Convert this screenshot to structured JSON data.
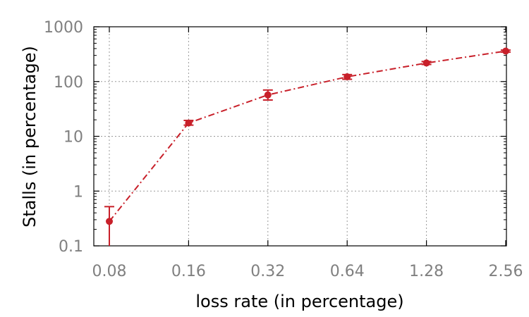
{
  "chart_data": {
    "type": "line",
    "xlabel": "loss rate (in percentage)",
    "ylabel": "Stalls (in percentage)",
    "x_scale": "log2",
    "y_scale": "log10",
    "x": [
      0.08,
      0.16,
      0.32,
      0.64,
      1.28,
      2.56
    ],
    "x_tick_labels": [
      "0.08",
      "0.16",
      "0.32",
      "0.64",
      "1.28",
      "2.56"
    ],
    "y_ticks": [
      0.1,
      1,
      10,
      100,
      1000
    ],
    "y_tick_labels": [
      "0.1",
      "1",
      "10",
      "100",
      "1000"
    ],
    "ylim": [
      0.1,
      1000
    ],
    "grid": true,
    "series": [
      {
        "color": "#c8202a",
        "line_style": "dash-dot",
        "marker": "circle",
        "values": [
          0.28,
          17.5,
          57,
          122,
          218,
          360
        ],
        "error_low": [
          0.1,
          16,
          46,
          110,
          205,
          345
        ],
        "error_high": [
          0.52,
          19.5,
          70,
          134,
          232,
          375
        ]
      }
    ]
  }
}
